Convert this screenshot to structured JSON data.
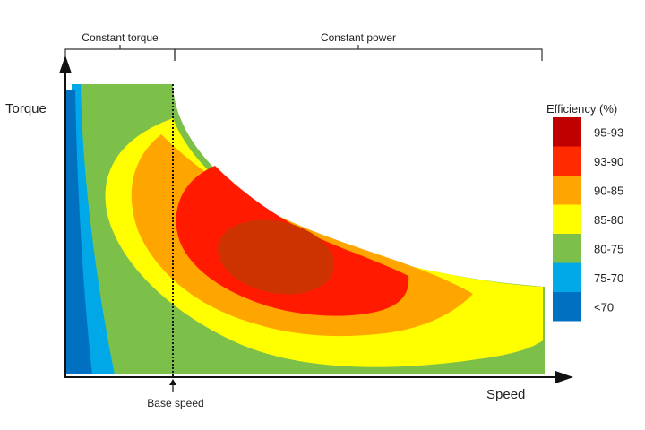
{
  "chart_data": {
    "type": "heatmap",
    "title": "",
    "xlabel": "Speed",
    "ylabel": "Torque",
    "regions": {
      "constant_torque": "Constant torque",
      "constant_power": "Constant power"
    },
    "base_speed_label": "Base speed",
    "legend": {
      "title": "Efficiency (%)",
      "position": "right",
      "bands": [
        {
          "label": "95-93",
          "color": "#c00000"
        },
        {
          "label": "93-90",
          "color": "#ff2a00"
        },
        {
          "label": "90-85",
          "color": "#ffa500"
        },
        {
          "label": "85-80",
          "color": "#ffff00"
        },
        {
          "label": "80-75",
          "color": "#7cc04a"
        },
        {
          "label": "75-70",
          "color": "#00a8e8"
        },
        {
          "label": "<70",
          "color": "#0070c0"
        }
      ]
    }
  }
}
